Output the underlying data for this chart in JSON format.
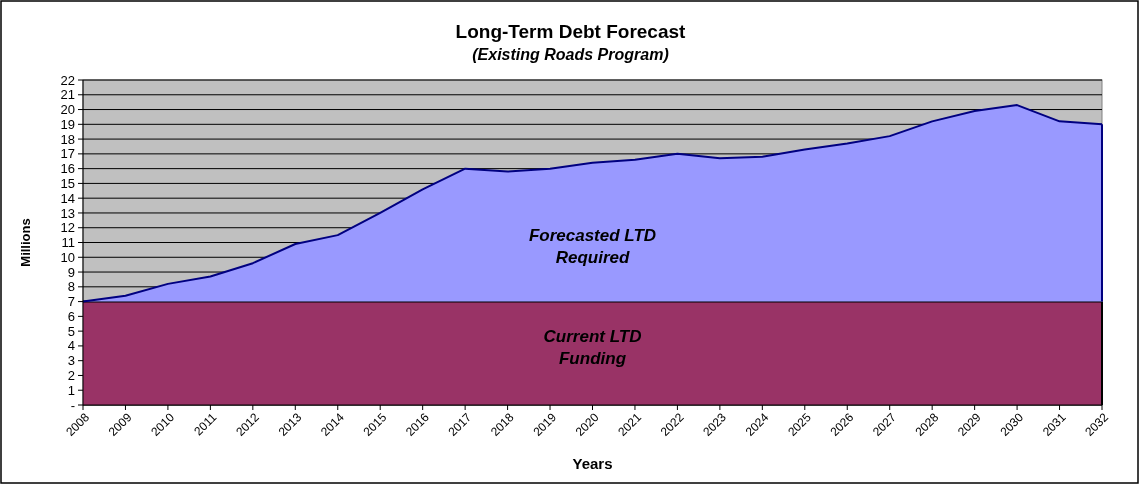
{
  "chart_data": {
    "type": "area",
    "title": "Long-Term Debt Forecast",
    "subtitle": "(Existing Roads Program)",
    "xlabel": "Years",
    "ylabel": "Millions",
    "categories": [
      "2008",
      "2009",
      "2010",
      "2011",
      "2012",
      "2013",
      "2014",
      "2015",
      "2016",
      "2017",
      "2018",
      "2019",
      "2020",
      "2021",
      "2022",
      "2023",
      "2024",
      "2025",
      "2026",
      "2027",
      "2028",
      "2029",
      "2030",
      "2031",
      "2032"
    ],
    "stacked": true,
    "series": [
      {
        "name": "Current LTD Funding",
        "color": "#993366",
        "values": [
          7,
          7,
          7,
          7,
          7,
          7,
          7,
          7,
          7,
          7,
          7,
          7,
          7,
          7,
          7,
          7,
          7,
          7,
          7,
          7,
          7,
          7,
          7,
          7,
          7
        ]
      },
      {
        "name": "Forecasted LTD Required",
        "color": "#9999ff",
        "values": [
          0,
          0.4,
          1.2,
          1.7,
          2.6,
          3.9,
          4.5,
          6.0,
          7.6,
          9.0,
          8.8,
          9.0,
          9.4,
          9.6,
          10.0,
          9.7,
          9.8,
          10.3,
          10.7,
          11.2,
          12.2,
          12.9,
          13.3,
          12.2,
          12.0
        ]
      }
    ],
    "ylim": [
      0,
      22
    ],
    "yticks": [
      {
        "value": 0,
        "label": "-"
      },
      1,
      2,
      3,
      4,
      5,
      6,
      7,
      8,
      9,
      10,
      11,
      12,
      13,
      14,
      15,
      16,
      17,
      18,
      19,
      20,
      21,
      22
    ],
    "grid": "y"
  }
}
